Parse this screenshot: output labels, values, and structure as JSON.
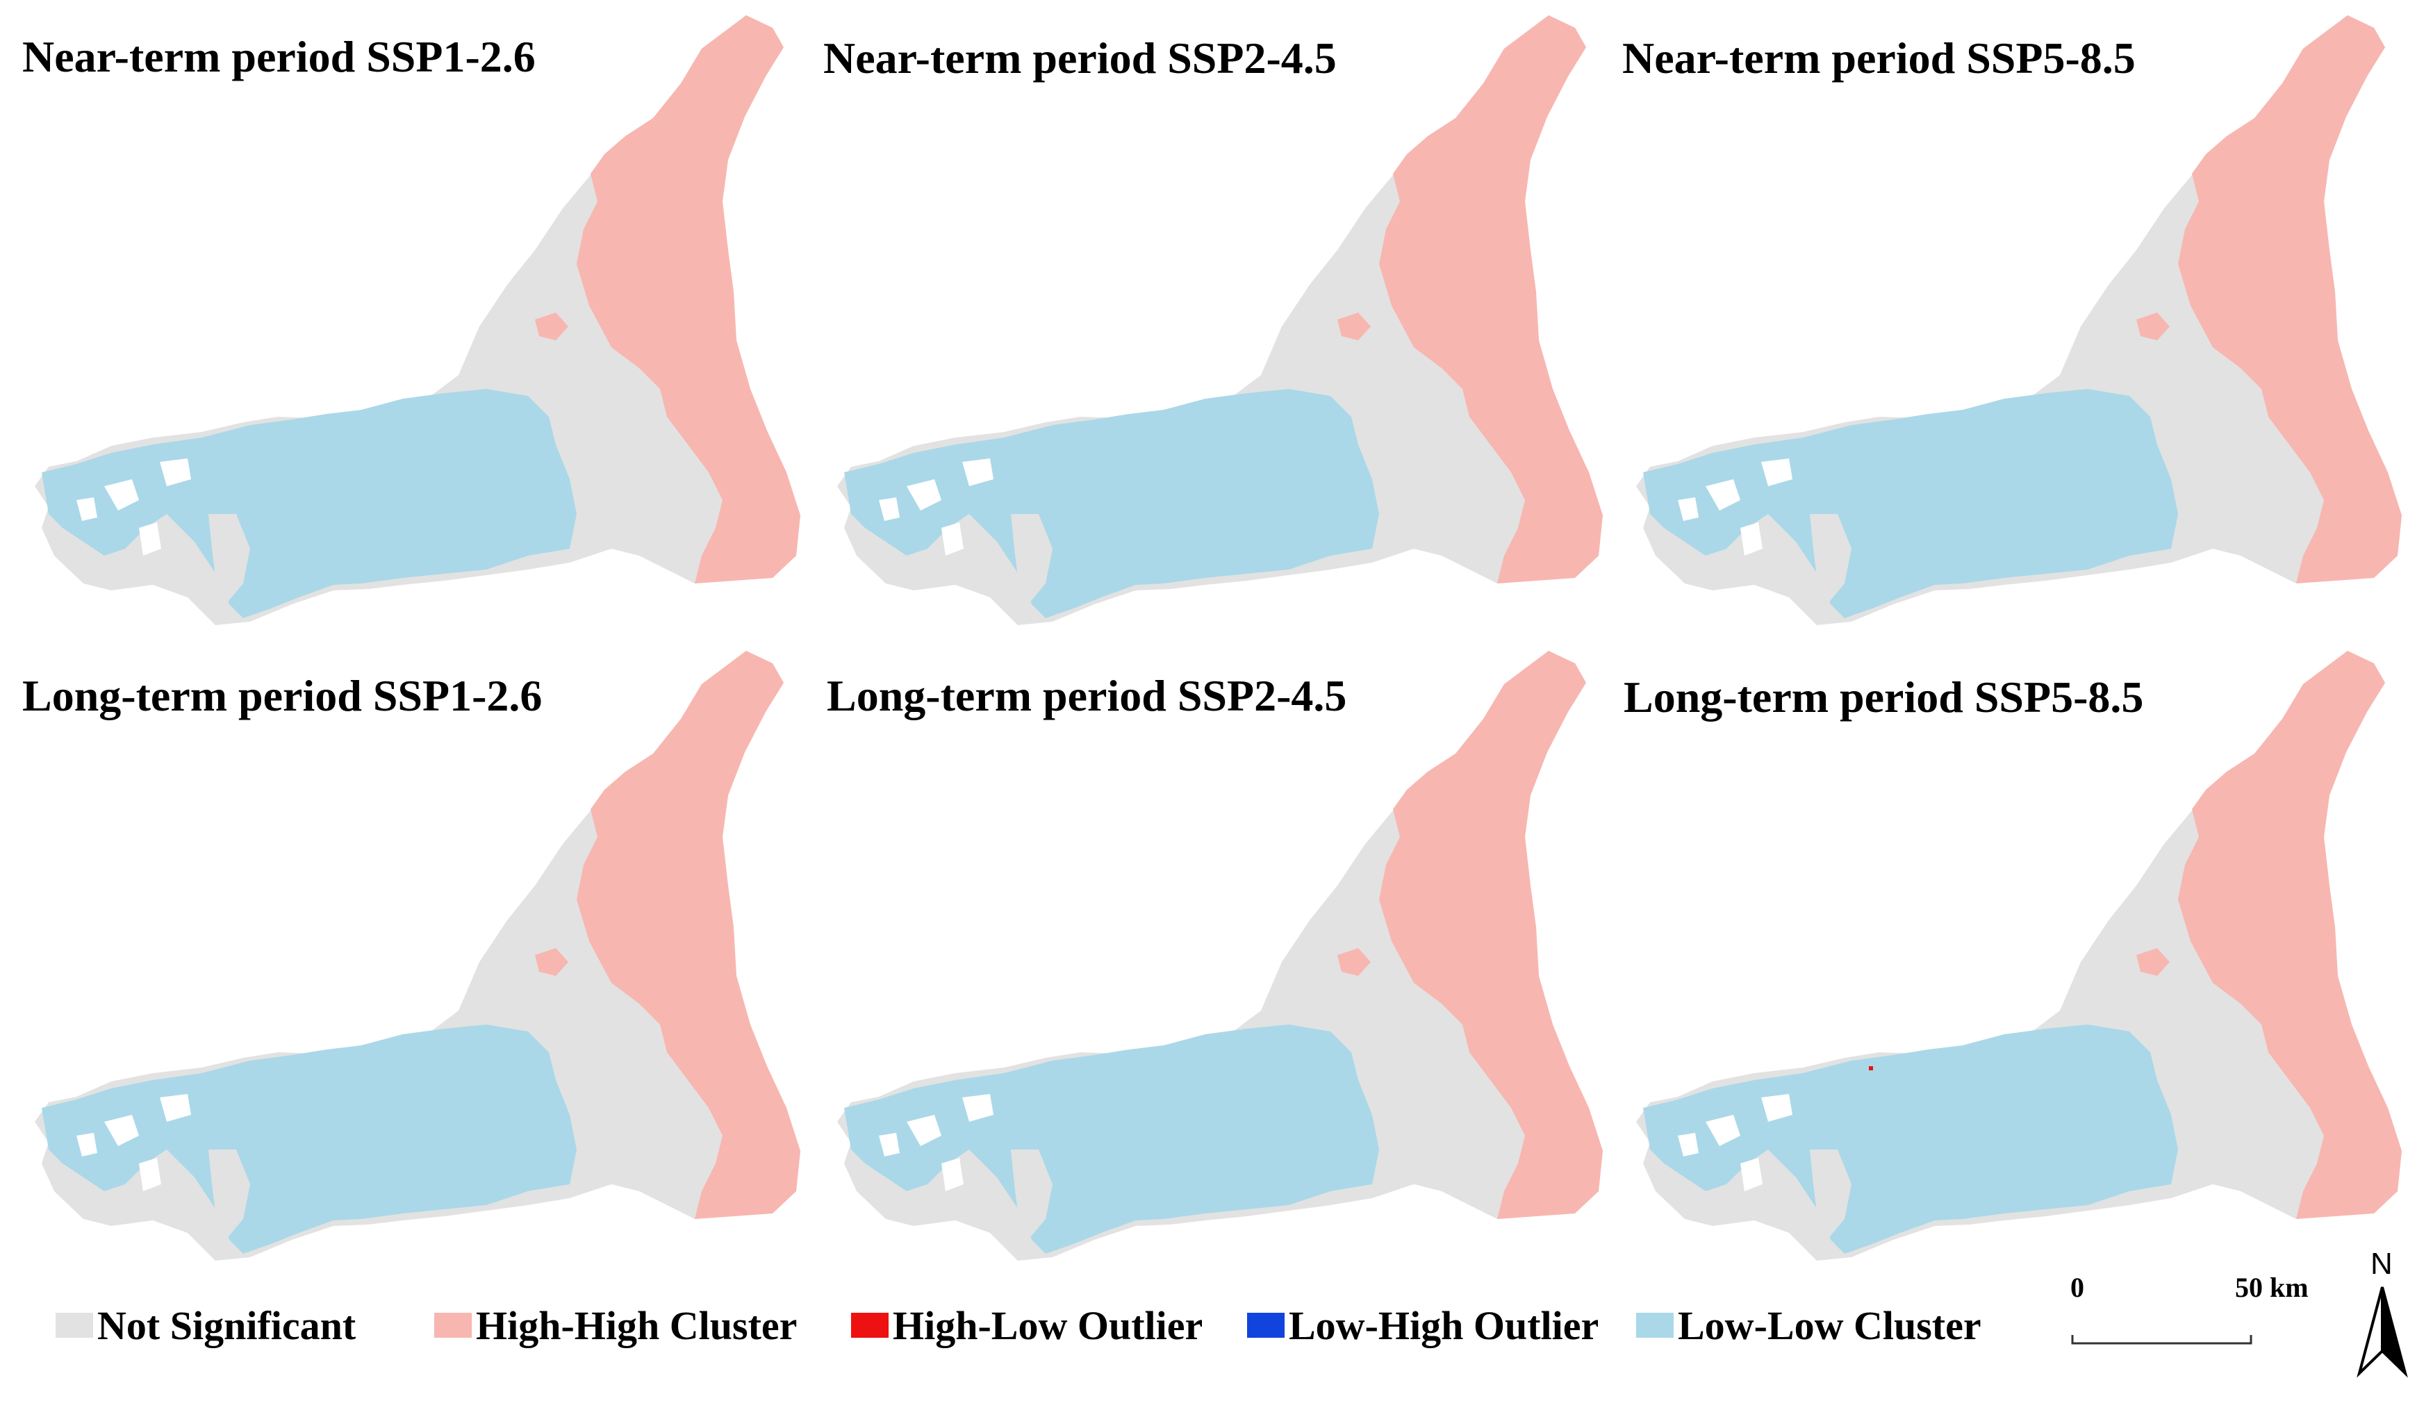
{
  "colors": {
    "not_significant": "#e2e2e2",
    "high_high": "#f8b6b0",
    "high_low": "#ee1111",
    "low_high": "#1144dd",
    "low_low": "#aad8e8"
  },
  "panels": [
    {
      "title": "Near-term period SSP1-2.6",
      "high_low_point": false
    },
    {
      "title": "Near-term period SSP2-4.5",
      "high_low_point": false
    },
    {
      "title": "Near-term period SSP5-8.5",
      "high_low_point": false
    },
    {
      "title": "Long-term period SSP1-2.6",
      "high_low_point": false
    },
    {
      "title": "Long-term period SSP2-4.5",
      "high_low_point": false
    },
    {
      "title": "Long-term period SSP5-8.5",
      "high_low_point": true
    }
  ],
  "legend": {
    "items": [
      {
        "label": "Not Significant",
        "color": "#e2e2e2"
      },
      {
        "label": "High-High Cluster",
        "color": "#f8b6b0"
      },
      {
        "label": "High-Low Outlier",
        "color": "#ee1111"
      },
      {
        "label": "Low-High Outlier",
        "color": "#1144dd"
      },
      {
        "label": "Low-Low Cluster",
        "color": "#aad8e8"
      }
    ]
  },
  "scalebar": {
    "start_label": "0",
    "end_label": "50 km"
  },
  "north_arrow": {
    "label": "N",
    "icon": "north-arrow-icon"
  }
}
